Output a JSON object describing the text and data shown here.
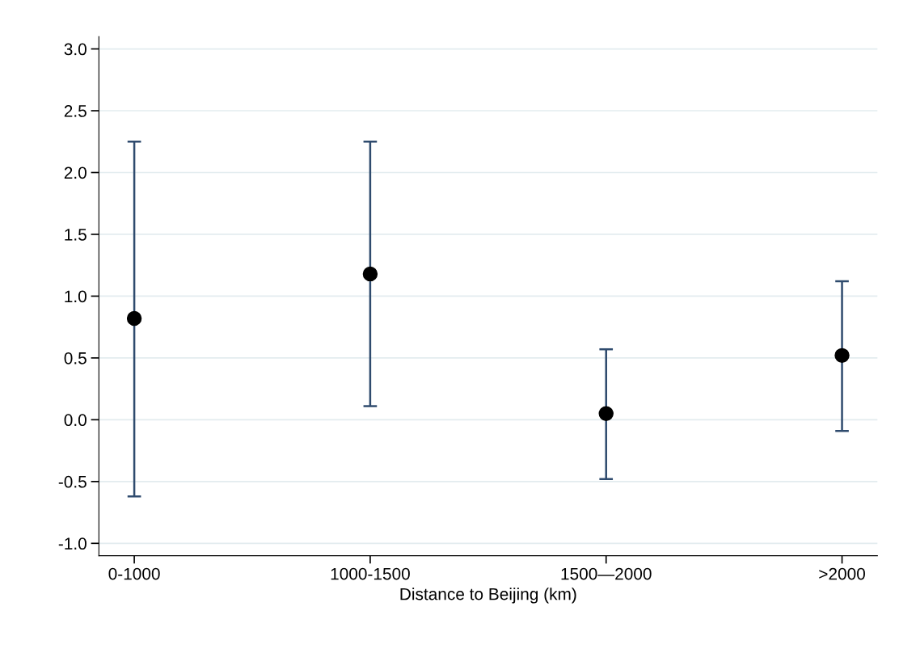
{
  "chart_data": {
    "type": "scatter",
    "xlabel": "Distance to Beijing (km)",
    "categories": [
      "0-1000",
      "1000-1500",
      "1500—2000",
      ">2000"
    ],
    "series": [
      {
        "color": "#000000",
        "values": [
          0.82,
          1.18,
          0.05,
          0.52
        ],
        "errors": [
          [
            -0.62,
            2.25
          ],
          [
            0.11,
            2.25
          ],
          [
            -0.48,
            0.57
          ],
          [
            -0.09,
            1.12
          ]
        ]
      }
    ],
    "ylim": [
      -1.1,
      3.1
    ],
    "yticks": [
      {
        "value": -1,
        "label": "-1.0"
      },
      {
        "value": -0.5,
        "label": "-0.5"
      },
      {
        "value": 0,
        "label": "0.0"
      },
      {
        "value": 0.5,
        "label": "0.5"
      },
      {
        "value": 1,
        "label": "1.0"
      },
      {
        "value": 1.5,
        "label": "1.5"
      },
      {
        "value": 2,
        "label": "2.0"
      },
      {
        "value": 2.5,
        "label": "2.5"
      },
      {
        "value": 3,
        "label": "3.0"
      }
    ],
    "grid": "y",
    "marker": "circle",
    "legend": false
  }
}
